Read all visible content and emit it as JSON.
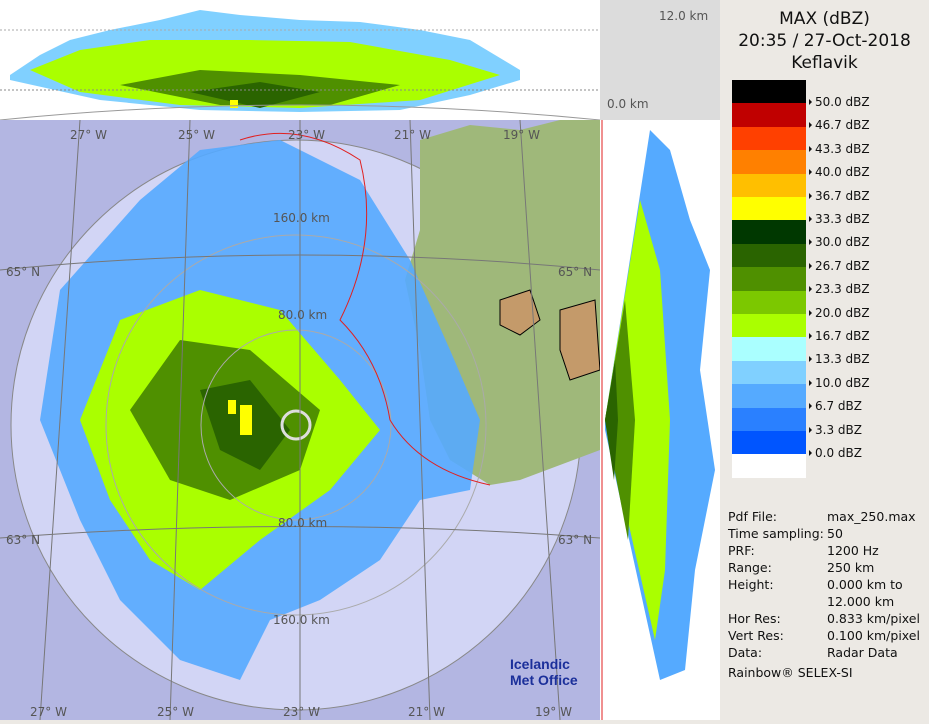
{
  "header": {
    "product": "MAX (dBZ)",
    "datetime": "20:35 / 27-Oct-2018",
    "station": "Keflavik"
  },
  "legend": {
    "colors": [
      "#000000",
      "#c00000",
      "#ff4000",
      "#ff8000",
      "#ffbf00",
      "#ffff00",
      "#003800",
      "#2a6400",
      "#4f9000",
      "#7cc800",
      "#aaff00",
      "#aaffff",
      "#80d0ff",
      "#55aaff",
      "#2a80ff",
      "#0055ff",
      "#ffffff"
    ],
    "labels": [
      "50.0 dBZ",
      "46.7 dBZ",
      "43.3 dBZ",
      "40.0 dBZ",
      "36.7 dBZ",
      "33.3 dBZ",
      "30.0 dBZ",
      "26.7 dBZ",
      "23.3 dBZ",
      "20.0 dBZ",
      "16.7 dBZ",
      "13.3 dBZ",
      "10.0 dBZ",
      "6.7 dBZ",
      "3.3 dBZ",
      "0.0 dBZ"
    ]
  },
  "info": [
    {
      "k": "Pdf File:",
      "v": "max_250.max"
    },
    {
      "k": "Time sampling:",
      "v": "50"
    },
    {
      "k": "PRF:",
      "v": "1200 Hz"
    },
    {
      "k": "Range:",
      "v": "250 km"
    },
    {
      "k": "Height:",
      "v": "0.000 km to"
    },
    {
      "k": "",
      "v": "12.000 km"
    },
    {
      "k": "Hor Res:",
      "v": "0.833 km/pixel"
    },
    {
      "k": "Vert Res:",
      "v": "0.100 km/pixel"
    },
    {
      "k": "Data:",
      "v": "Radar Data"
    }
  ],
  "credit": "Rainbow® SELEX-SI",
  "top_panel": {
    "max_height": "12.0 km",
    "min_height": "0.0 km"
  },
  "map": {
    "lon_top": [
      "27° W",
      "25° W",
      "23° W",
      "21° W",
      "19° W"
    ],
    "lon_bottom": [
      "27° W",
      "25° W",
      "23° W",
      "21° W",
      "19° W"
    ],
    "lat": [
      "65° N",
      "63° N"
    ],
    "rings": [
      "160.0 km",
      "80.0 km",
      "80.0 km",
      "160.0 km"
    ],
    "logo": "Icelandic Met Office"
  }
}
